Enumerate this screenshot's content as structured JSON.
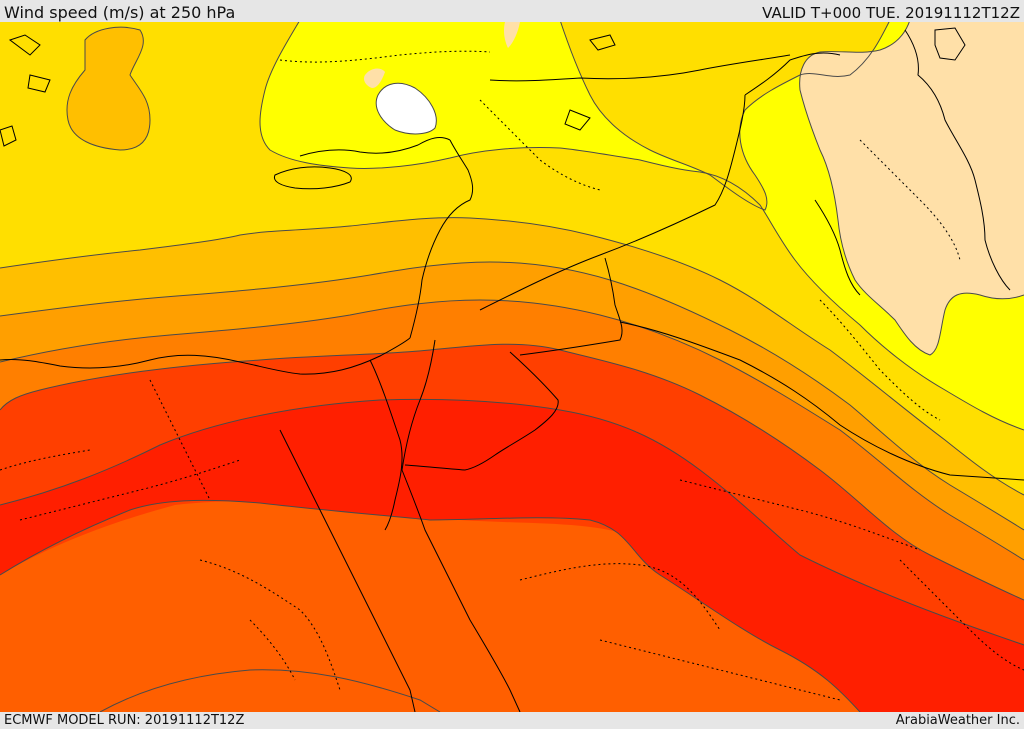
{
  "header": {
    "title": "Wind speed (m/s) at 250 hPa",
    "valid": "VALID T+000 TUE. 20191112T12Z"
  },
  "footer": {
    "model_run": "ECMWF MODEL RUN: 20191112T12Z",
    "credit": "ArabiaWeather Inc."
  },
  "colors": {
    "band_1": "#ffffff",
    "band_2": "#ffe0a8",
    "band_3": "#ffff00",
    "band_4": "#ffdf00",
    "band_5": "#ffbf00",
    "band_6": "#ff9f00",
    "band_7": "#ff7f00",
    "band_8": "#ff5f00",
    "band_9": "#ff3f00",
    "band_10": "#ff1f00",
    "contour": "#4a4a4a",
    "coast": "#000000"
  }
}
